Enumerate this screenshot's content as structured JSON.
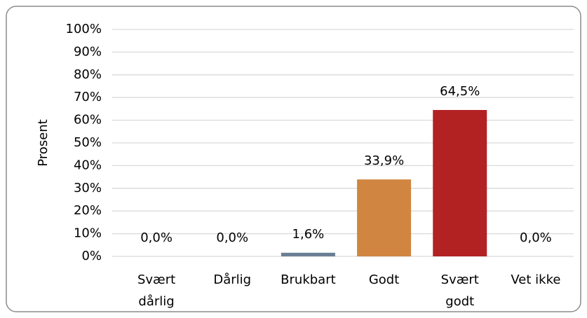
{
  "chart_data": {
    "type": "bar",
    "y_label": "Prosent",
    "categories": [
      "Svært dårlig",
      "Dårlig",
      "Brukbart",
      "Godt",
      "Svært godt",
      "Vet ikke"
    ],
    "values": [
      0,
      0,
      1.6,
      33.9,
      64.5,
      0
    ],
    "value_labels": [
      "0,0%",
      "0,0%",
      "1,6%",
      "33,9%",
      "64,5%",
      "0,0%"
    ],
    "colors": [
      "#6b7f94",
      "#6b7f94",
      "#6b7f94",
      "#d08640",
      "#b22222",
      "#6b7f94"
    ],
    "ylim": [
      0,
      100
    ],
    "yticks": [
      {
        "value": 0,
        "label": "0%"
      },
      {
        "value": 10,
        "label": "10%"
      },
      {
        "value": 20,
        "label": "20%"
      },
      {
        "value": 30,
        "label": "30%"
      },
      {
        "value": 40,
        "label": "40%"
      },
      {
        "value": 50,
        "label": "50%"
      },
      {
        "value": 60,
        "label": "60%"
      },
      {
        "value": 70,
        "label": "70%"
      },
      {
        "value": 80,
        "label": "80%"
      },
      {
        "value": 90,
        "label": "90%"
      },
      {
        "value": 100,
        "label": "100%"
      }
    ],
    "grid": true
  }
}
